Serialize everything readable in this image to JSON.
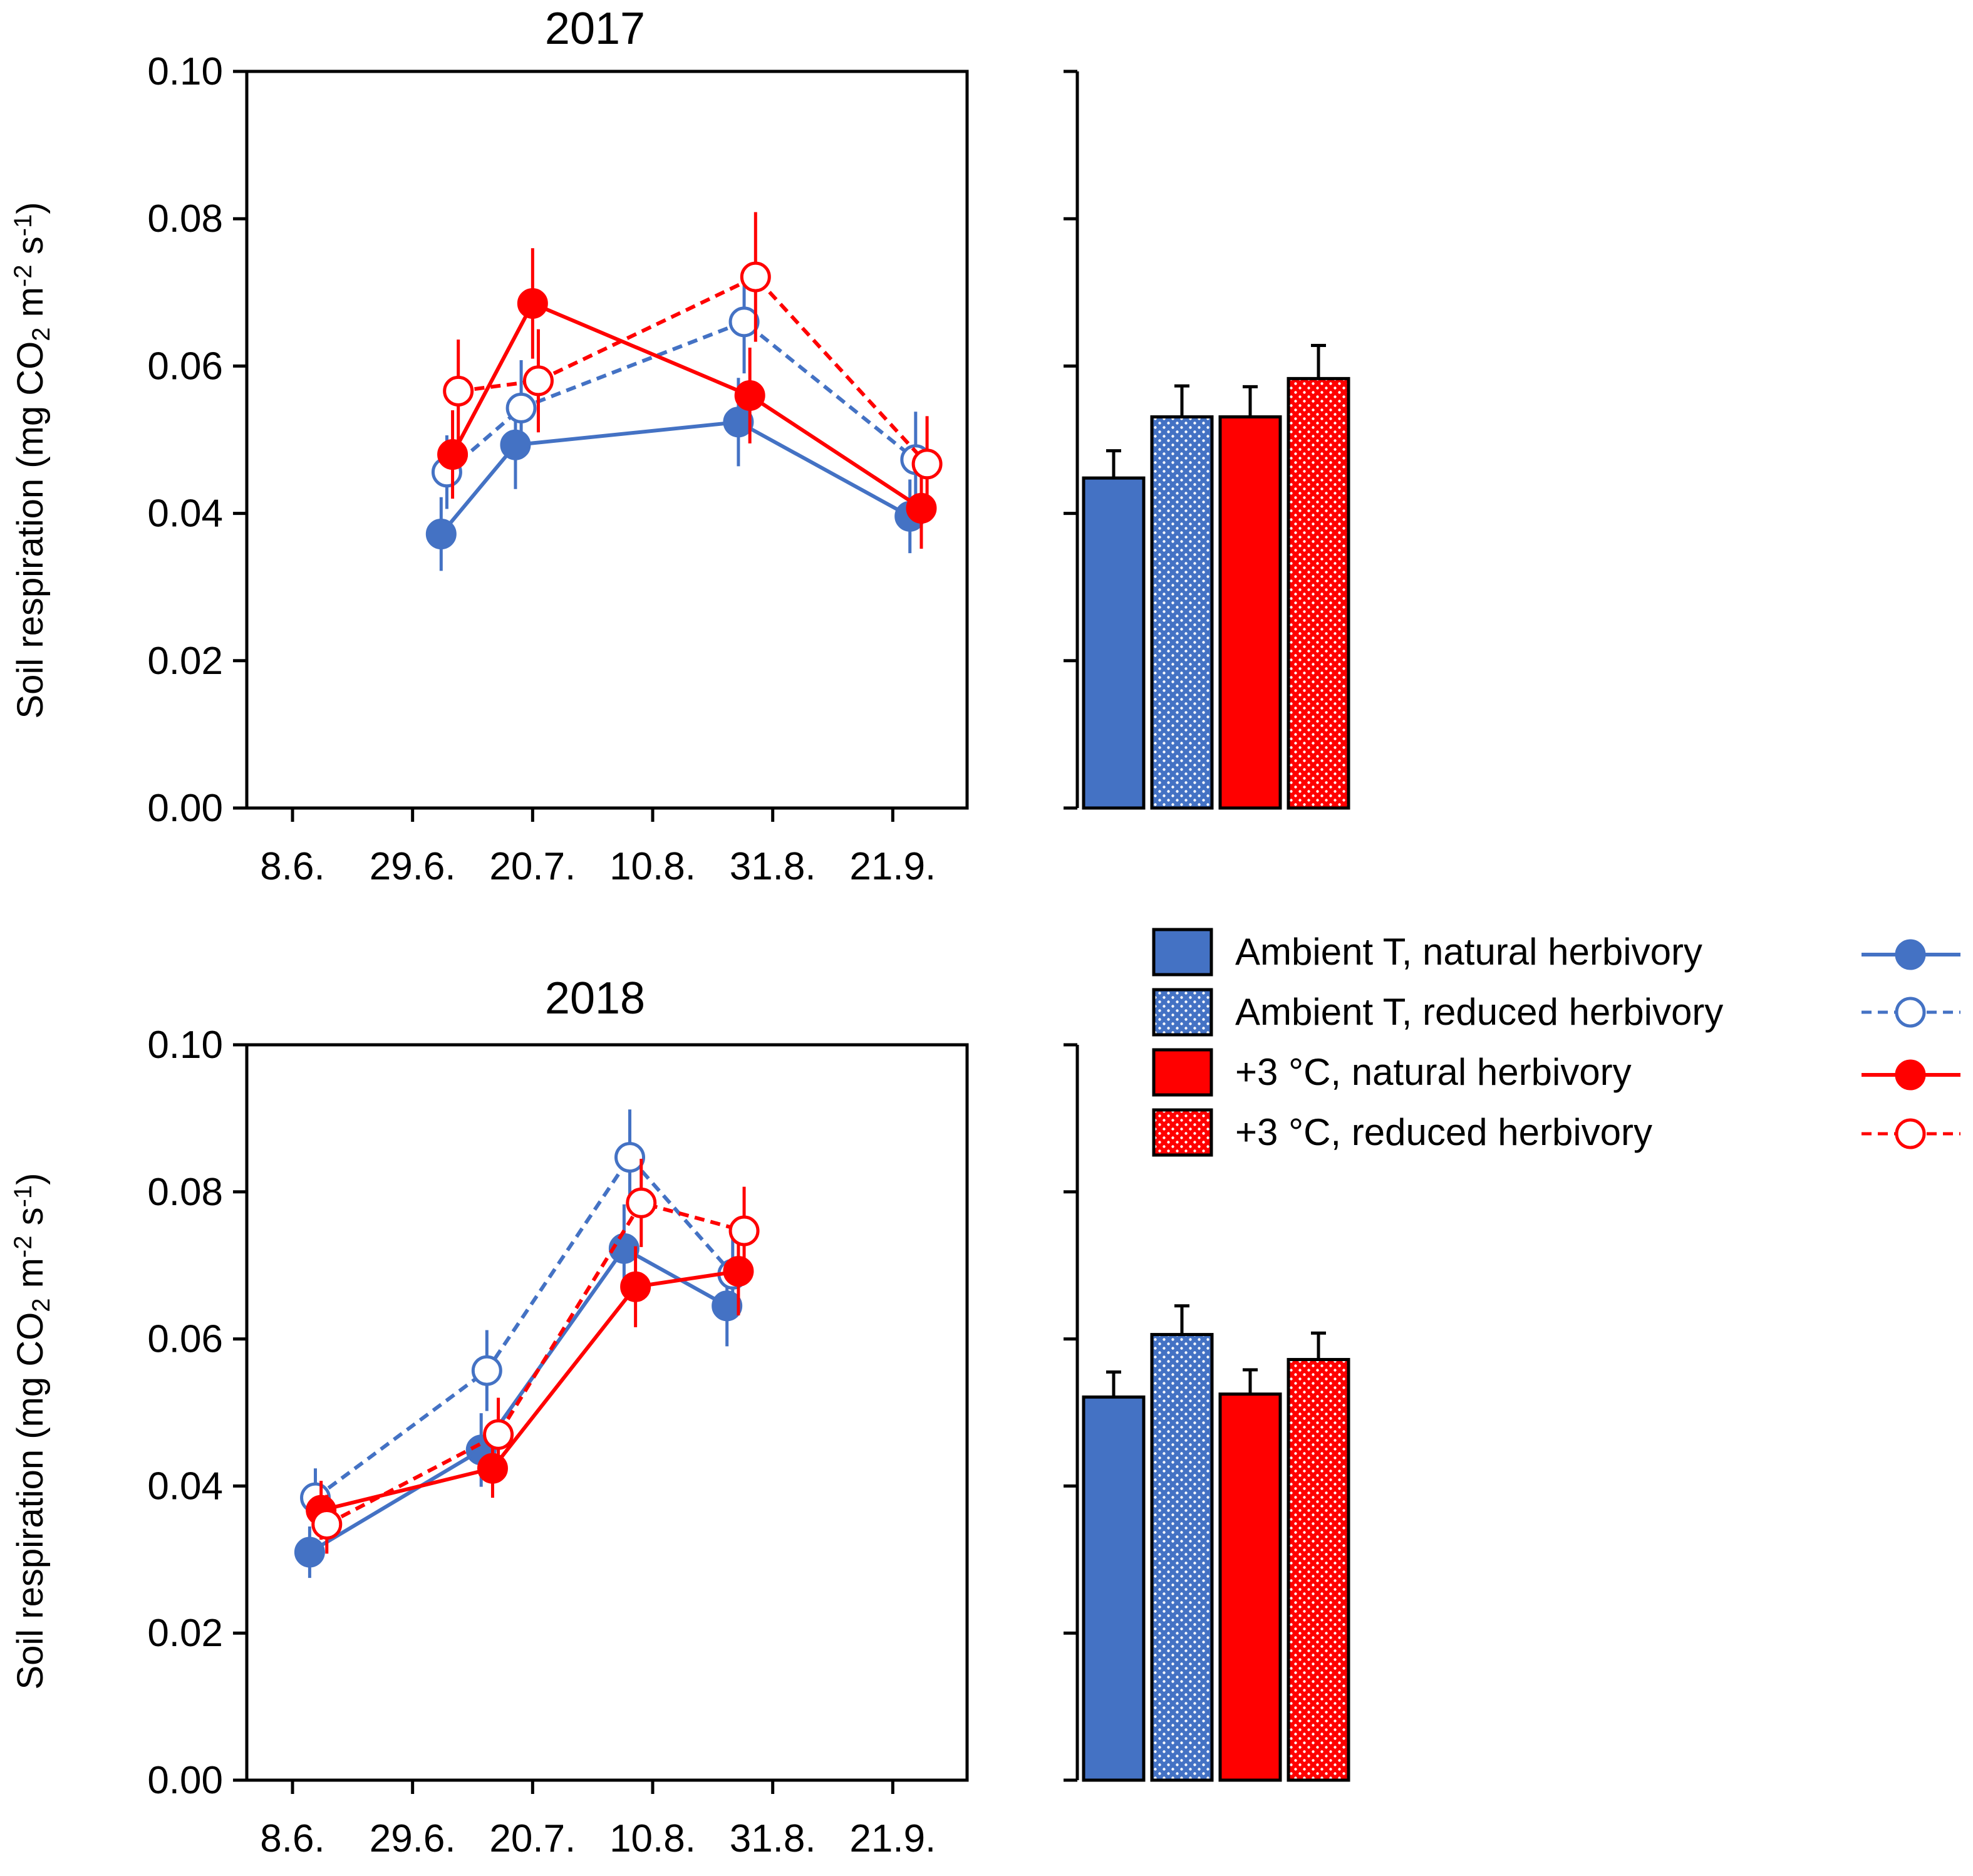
{
  "colors": {
    "blue": "#4472C4",
    "red": "#FF0000",
    "axis": "#000000"
  },
  "legend": [
    {
      "label": "Ambient T, natural herbivory",
      "color": "#4472C4",
      "fill": "solid",
      "dashed": false,
      "marker": "filled"
    },
    {
      "label": "Ambient T, reduced herbivory",
      "color": "#4472C4",
      "fill": "dotted",
      "dashed": true,
      "marker": "open"
    },
    {
      "label": "+3 °C, natural herbivory",
      "color": "#FF0000",
      "fill": "solid",
      "dashed": false,
      "marker": "filled"
    },
    {
      "label": "+3 °C, reduced herbivory",
      "color": "#FF0000",
      "fill": "dotted",
      "dashed": true,
      "marker": "open"
    }
  ],
  "chart_data": [
    {
      "type": "line",
      "title": "2017",
      "ylabel": "Soil respiration (mg CO2 m-2 s-1)",
      "ylabel_parts": [
        "Soil respiration (mg CO",
        "2",
        " m",
        "-2",
        " s",
        "-1",
        ")"
      ],
      "xlabel": "",
      "ylim": [
        0,
        0.1
      ],
      "yticks": [
        0.0,
        0.02,
        0.04,
        0.06,
        0.08,
        0.1
      ],
      "ytick_labels": [
        "0.00",
        "0.02",
        "0.04",
        "0.06",
        "0.08",
        "0.10"
      ],
      "xlim": [
        0,
        126
      ],
      "xticks": [
        8,
        29,
        50,
        71,
        92,
        113
      ],
      "xtick_labels": [
        "8.6.",
        "29.6.",
        "20.7.",
        "10.8.",
        "31.8.",
        "21.9."
      ],
      "series": [
        {
          "name": "Ambient T, natural herbivory",
          "x": [
            34,
            47,
            86,
            116
          ],
          "y": [
            0.0372,
            0.0493,
            0.0524,
            0.0396
          ],
          "err": [
            0.005,
            0.006,
            0.006,
            0.005
          ]
        },
        {
          "name": "Ambient T, reduced herbivory",
          "x": [
            35,
            48,
            87,
            117
          ],
          "y": [
            0.0456,
            0.0543,
            0.066,
            0.0473
          ],
          "err": [
            0.005,
            0.0065,
            0.007,
            0.0065
          ]
        },
        {
          "name": "+3 °C, natural herbivory",
          "x": [
            36,
            50,
            88,
            118
          ],
          "y": [
            0.048,
            0.0685,
            0.056,
            0.0407
          ],
          "err": [
            0.006,
            0.0075,
            0.0065,
            0.0055
          ]
        },
        {
          "name": "+3 °C, reduced herbivory",
          "x": [
            37,
            51,
            89,
            119
          ],
          "y": [
            0.0566,
            0.058,
            0.0721,
            0.0467
          ],
          "err": [
            0.007,
            0.007,
            0.0088,
            0.0065
          ]
        }
      ]
    },
    {
      "type": "bar",
      "title": "",
      "categories": [
        "Ambient T, natural herbivory",
        "Ambient T, reduced herbivory",
        "+3 °C, natural herbivory",
        "+3 °C, reduced herbivory"
      ],
      "values": [
        0.0448,
        0.0531,
        0.0531,
        0.0583
      ],
      "err": [
        0.0037,
        0.0042,
        0.0041,
        0.0045
      ],
      "ylim": [
        0,
        0.1
      ]
    },
    {
      "type": "line",
      "title": "2018",
      "ylabel": "Soil respiration (mg CO2 m-2 s-1)",
      "ylabel_parts": [
        "Soil respiration (mg CO",
        "2",
        " m",
        "-2",
        " s",
        "-1",
        ")"
      ],
      "xlabel": "",
      "ylim": [
        0,
        0.1
      ],
      "yticks": [
        0.0,
        0.02,
        0.04,
        0.06,
        0.08,
        0.1
      ],
      "ytick_labels": [
        "0.00",
        "0.02",
        "0.04",
        "0.06",
        "0.08",
        "0.10"
      ],
      "xlim": [
        0,
        126
      ],
      "xticks": [
        8,
        29,
        50,
        71,
        92,
        113
      ],
      "xtick_labels": [
        "8.6.",
        "29.6.",
        "20.7.",
        "10.8.",
        "31.8.",
        "21.9."
      ],
      "series": [
        {
          "name": "Ambient T, natural herbivory",
          "x": [
            11,
            41,
            66,
            84
          ],
          "y": [
            0.031,
            0.0449,
            0.0723,
            0.0645
          ],
          "err": [
            0.0035,
            0.005,
            0.006,
            0.0055
          ]
        },
        {
          "name": "Ambient T, reduced herbivory",
          "x": [
            12,
            42,
            67,
            85
          ],
          "y": [
            0.0384,
            0.0557,
            0.0847,
            0.0688
          ],
          "err": [
            0.004,
            0.0055,
            0.0065,
            0.006
          ]
        },
        {
          "name": "+3 °C, natural herbivory",
          "x": [
            13,
            43,
            68,
            86
          ],
          "y": [
            0.0367,
            0.0424,
            0.0671,
            0.0692
          ],
          "err": [
            0.004,
            0.004,
            0.0055,
            0.006
          ]
        },
        {
          "name": "+3 °C, reduced herbivory",
          "x": [
            14,
            44,
            69,
            87
          ],
          "y": [
            0.0348,
            0.047,
            0.0785,
            0.0747
          ],
          "err": [
            0.004,
            0.005,
            0.006,
            0.006
          ]
        }
      ]
    },
    {
      "type": "bar",
      "title": "",
      "categories": [
        "Ambient T, natural herbivory",
        "Ambient T, reduced herbivory",
        "+3 °C, natural herbivory",
        "+3 °C, reduced herbivory"
      ],
      "values": [
        0.0521,
        0.0606,
        0.0525,
        0.0572
      ],
      "err": [
        0.0034,
        0.0039,
        0.0033,
        0.0036
      ],
      "ylim": [
        0,
        0.1
      ]
    }
  ]
}
